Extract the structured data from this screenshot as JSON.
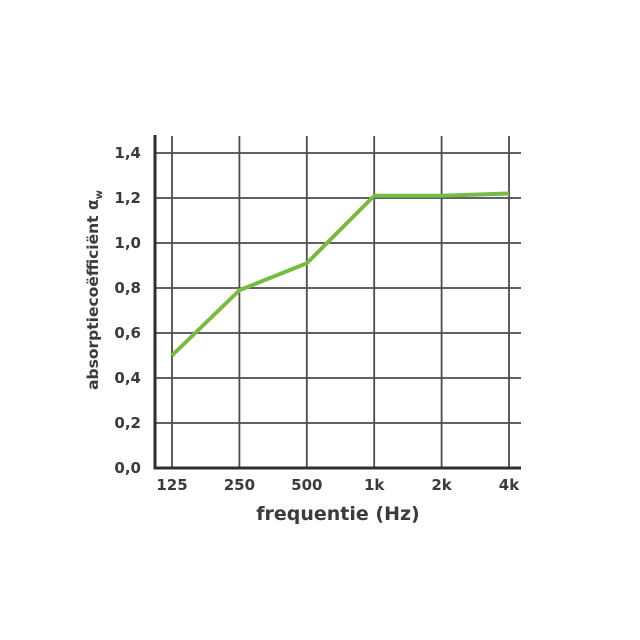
{
  "page": {
    "background": "#ffffff"
  },
  "chart_data": {
    "type": "line",
    "title": "",
    "categories": [
      "125",
      "250",
      "500",
      "1k",
      "2k",
      "4k"
    ],
    "series": [
      {
        "name": "absorptiecoëfficiënt αw",
        "values": [
          0.5,
          0.79,
          0.91,
          1.21,
          1.21,
          1.22
        ],
        "color": "#76bc43"
      }
    ],
    "xlabel": "frequentie (Hz)",
    "ylabel": "absorptiecoëfficiënt",
    "ylabel_symbol": "α",
    "ylabel_symbol_subscript": "w",
    "yticks": [
      {
        "value": 0.0,
        "label": "0,0"
      },
      {
        "value": 0.2,
        "label": "0,2"
      },
      {
        "value": 0.4,
        "label": "0,4"
      },
      {
        "value": 0.6,
        "label": "0,6"
      },
      {
        "value": 0.8,
        "label": "0,8"
      },
      {
        "value": 1.0,
        "label": "1,0"
      },
      {
        "value": 1.2,
        "label": "1,2"
      },
      {
        "value": 1.4,
        "label": "1,4"
      }
    ],
    "ylim": [
      0,
      1.48
    ],
    "grid": true,
    "legend": false,
    "colors": {
      "grid": "#4c4c4c",
      "axis": "#2e2e2e",
      "line": "#76bc43",
      "text": "#3b3b3c"
    }
  }
}
